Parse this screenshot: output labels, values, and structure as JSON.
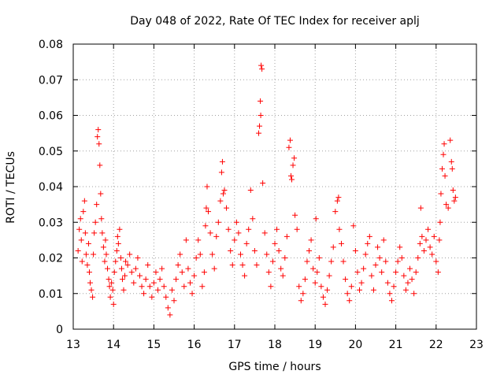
{
  "chart_data": {
    "type": "scatter",
    "title": "Day 048 of 2022, Rate Of TEC Index for receiver aplj",
    "xlabel": "GPS time / hours",
    "ylabel": "ROTI / TECUs",
    "xlim": [
      13,
      23
    ],
    "ylim": [
      0,
      0.08
    ],
    "x_ticks": [
      13,
      14,
      15,
      16,
      17,
      18,
      19,
      20,
      21,
      22,
      23
    ],
    "x_tick_labels": [
      "13",
      "14",
      "15",
      "16",
      "17",
      "18",
      "19",
      "20",
      "21",
      "22",
      "23"
    ],
    "y_ticks": [
      0,
      0.01,
      0.02,
      0.03,
      0.04,
      0.05,
      0.06,
      0.07,
      0.08
    ],
    "y_tick_labels": [
      "0",
      "0.01",
      "0.02",
      "0.03",
      "0.04",
      "0.05",
      "0.06",
      "0.07",
      "0.08"
    ],
    "grid": true,
    "marker": "+",
    "colors": {
      "points": "#ff0000",
      "grid": "#a0a0a0",
      "axes": "#000000"
    },
    "series": [
      {
        "name": "ROTI",
        "points": [
          [
            13.12,
            0.022
          ],
          [
            13.15,
            0.028
          ],
          [
            13.18,
            0.031
          ],
          [
            13.2,
            0.025
          ],
          [
            13.22,
            0.019
          ],
          [
            13.25,
            0.033
          ],
          [
            13.28,
            0.036
          ],
          [
            13.3,
            0.027
          ],
          [
            13.32,
            0.021
          ],
          [
            13.35,
            0.018
          ],
          [
            13.38,
            0.024
          ],
          [
            13.4,
            0.016
          ],
          [
            13.42,
            0.013
          ],
          [
            13.45,
            0.011
          ],
          [
            13.48,
            0.009
          ],
          [
            13.5,
            0.021
          ],
          [
            13.52,
            0.027
          ],
          [
            13.55,
            0.03
          ],
          [
            13.58,
            0.035
          ],
          [
            13.6,
            0.054
          ],
          [
            13.62,
            0.056
          ],
          [
            13.64,
            0.052
          ],
          [
            13.66,
            0.046
          ],
          [
            13.68,
            0.038
          ],
          [
            13.7,
            0.031
          ],
          [
            13.72,
            0.027
          ],
          [
            13.75,
            0.023
          ],
          [
            13.78,
            0.019
          ],
          [
            13.8,
            0.025
          ],
          [
            13.82,
            0.021
          ],
          [
            13.85,
            0.017
          ],
          [
            13.88,
            0.014
          ],
          [
            13.9,
            0.012
          ],
          [
            13.92,
            0.009
          ],
          [
            13.95,
            0.013
          ],
          [
            13.98,
            0.011
          ],
          [
            14.0,
            0.007
          ],
          [
            14.02,
            0.016
          ],
          [
            14.05,
            0.019
          ],
          [
            14.08,
            0.022
          ],
          [
            14.1,
            0.026
          ],
          [
            14.12,
            0.024
          ],
          [
            14.15,
            0.028
          ],
          [
            14.18,
            0.02
          ],
          [
            14.2,
            0.017
          ],
          [
            14.22,
            0.014
          ],
          [
            14.25,
            0.011
          ],
          [
            14.28,
            0.015
          ],
          [
            14.3,
            0.019
          ],
          [
            14.35,
            0.018
          ],
          [
            14.4,
            0.021
          ],
          [
            14.45,
            0.016
          ],
          [
            14.5,
            0.013
          ],
          [
            14.55,
            0.017
          ],
          [
            14.6,
            0.02
          ],
          [
            14.65,
            0.015
          ],
          [
            14.7,
            0.012
          ],
          [
            14.75,
            0.01
          ],
          [
            14.8,
            0.014
          ],
          [
            14.85,
            0.018
          ],
          [
            14.9,
            0.012
          ],
          [
            14.95,
            0.009
          ],
          [
            15.0,
            0.013
          ],
          [
            15.05,
            0.016
          ],
          [
            15.1,
            0.011
          ],
          [
            15.15,
            0.014
          ],
          [
            15.2,
            0.017
          ],
          [
            15.25,
            0.012
          ],
          [
            15.3,
            0.009
          ],
          [
            15.35,
            0.006
          ],
          [
            15.4,
            0.004
          ],
          [
            15.45,
            0.011
          ],
          [
            15.5,
            0.008
          ],
          [
            15.55,
            0.014
          ],
          [
            15.6,
            0.018
          ],
          [
            15.65,
            0.021
          ],
          [
            15.7,
            0.016
          ],
          [
            15.75,
            0.012
          ],
          [
            15.8,
            0.025
          ],
          [
            15.85,
            0.017
          ],
          [
            15.9,
            0.013
          ],
          [
            15.95,
            0.01
          ],
          [
            16.0,
            0.015
          ],
          [
            16.05,
            0.02
          ],
          [
            16.1,
            0.025
          ],
          [
            16.15,
            0.021
          ],
          [
            16.2,
            0.012
          ],
          [
            16.25,
            0.016
          ],
          [
            16.28,
            0.029
          ],
          [
            16.3,
            0.034
          ],
          [
            16.32,
            0.04
          ],
          [
            16.35,
            0.033
          ],
          [
            16.4,
            0.027
          ],
          [
            16.45,
            0.021
          ],
          [
            16.5,
            0.017
          ],
          [
            16.55,
            0.026
          ],
          [
            16.6,
            0.03
          ],
          [
            16.65,
            0.036
          ],
          [
            16.68,
            0.044
          ],
          [
            16.7,
            0.047
          ],
          [
            16.72,
            0.038
          ],
          [
            16.75,
            0.039
          ],
          [
            16.8,
            0.034
          ],
          [
            16.85,
            0.028
          ],
          [
            16.9,
            0.022
          ],
          [
            16.95,
            0.018
          ],
          [
            17.0,
            0.025
          ],
          [
            17.05,
            0.03
          ],
          [
            17.1,
            0.027
          ],
          [
            17.15,
            0.021
          ],
          [
            17.2,
            0.018
          ],
          [
            17.25,
            0.015
          ],
          [
            17.3,
            0.024
          ],
          [
            17.35,
            0.028
          ],
          [
            17.4,
            0.039
          ],
          [
            17.45,
            0.031
          ],
          [
            17.5,
            0.022
          ],
          [
            17.55,
            0.018
          ],
          [
            17.6,
            0.055
          ],
          [
            17.62,
            0.057
          ],
          [
            17.64,
            0.064
          ],
          [
            17.65,
            0.06
          ],
          [
            17.66,
            0.074
          ],
          [
            17.68,
            0.073
          ],
          [
            17.7,
            0.041
          ],
          [
            17.75,
            0.027
          ],
          [
            17.8,
            0.021
          ],
          [
            17.85,
            0.016
          ],
          [
            17.9,
            0.012
          ],
          [
            17.95,
            0.019
          ],
          [
            18.0,
            0.024
          ],
          [
            18.05,
            0.028
          ],
          [
            18.1,
            0.022
          ],
          [
            18.15,
            0.017
          ],
          [
            18.2,
            0.015
          ],
          [
            18.25,
            0.02
          ],
          [
            18.3,
            0.026
          ],
          [
            18.35,
            0.051
          ],
          [
            18.38,
            0.053
          ],
          [
            18.4,
            0.043
          ],
          [
            18.42,
            0.042
          ],
          [
            18.45,
            0.046
          ],
          [
            18.48,
            0.048
          ],
          [
            18.5,
            0.032
          ],
          [
            18.55,
            0.028
          ],
          [
            18.6,
            0.012
          ],
          [
            18.65,
            0.008
          ],
          [
            18.7,
            0.01
          ],
          [
            18.75,
            0.014
          ],
          [
            18.8,
            0.019
          ],
          [
            18.85,
            0.022
          ],
          [
            18.9,
            0.025
          ],
          [
            18.95,
            0.017
          ],
          [
            19.0,
            0.013
          ],
          [
            19.02,
            0.031
          ],
          [
            19.05,
            0.016
          ],
          [
            19.1,
            0.02
          ],
          [
            19.15,
            0.012
          ],
          [
            19.2,
            0.009
          ],
          [
            19.25,
            0.007
          ],
          [
            19.3,
            0.011
          ],
          [
            19.35,
            0.015
          ],
          [
            19.4,
            0.019
          ],
          [
            19.45,
            0.023
          ],
          [
            19.5,
            0.033
          ],
          [
            19.55,
            0.036
          ],
          [
            19.58,
            0.037
          ],
          [
            19.6,
            0.028
          ],
          [
            19.65,
            0.024
          ],
          [
            19.7,
            0.019
          ],
          [
            19.75,
            0.014
          ],
          [
            19.8,
            0.01
          ],
          [
            19.85,
            0.008
          ],
          [
            19.9,
            0.012
          ],
          [
            19.95,
            0.029
          ],
          [
            20.0,
            0.022
          ],
          [
            20.05,
            0.016
          ],
          [
            20.1,
            0.011
          ],
          [
            20.15,
            0.013
          ],
          [
            20.2,
            0.017
          ],
          [
            20.25,
            0.021
          ],
          [
            20.3,
            0.024
          ],
          [
            20.35,
            0.026
          ],
          [
            20.4,
            0.015
          ],
          [
            20.45,
            0.011
          ],
          [
            20.5,
            0.018
          ],
          [
            20.55,
            0.023
          ],
          [
            20.6,
            0.02
          ],
          [
            20.65,
            0.016
          ],
          [
            20.7,
            0.025
          ],
          [
            20.75,
            0.019
          ],
          [
            20.8,
            0.013
          ],
          [
            20.85,
            0.01
          ],
          [
            20.9,
            0.008
          ],
          [
            20.95,
            0.012
          ],
          [
            21.0,
            0.016
          ],
          [
            21.05,
            0.019
          ],
          [
            21.1,
            0.023
          ],
          [
            21.15,
            0.02
          ],
          [
            21.2,
            0.015
          ],
          [
            21.25,
            0.011
          ],
          [
            21.3,
            0.013
          ],
          [
            21.35,
            0.017
          ],
          [
            21.4,
            0.014
          ],
          [
            21.45,
            0.01
          ],
          [
            21.5,
            0.016
          ],
          [
            21.55,
            0.02
          ],
          [
            21.6,
            0.024
          ],
          [
            21.62,
            0.034
          ],
          [
            21.65,
            0.026
          ],
          [
            21.7,
            0.022
          ],
          [
            21.75,
            0.025
          ],
          [
            21.8,
            0.028
          ],
          [
            21.85,
            0.023
          ],
          [
            21.9,
            0.021
          ],
          [
            21.95,
            0.026
          ],
          [
            22.0,
            0.019
          ],
          [
            22.05,
            0.016
          ],
          [
            22.08,
            0.025
          ],
          [
            22.1,
            0.03
          ],
          [
            22.12,
            0.038
          ],
          [
            22.15,
            0.045
          ],
          [
            22.18,
            0.049
          ],
          [
            22.2,
            0.052
          ],
          [
            22.22,
            0.043
          ],
          [
            22.25,
            0.035
          ],
          [
            22.3,
            0.034
          ],
          [
            22.35,
            0.053
          ],
          [
            22.38,
            0.047
          ],
          [
            22.4,
            0.045
          ],
          [
            22.42,
            0.039
          ],
          [
            22.45,
            0.036
          ],
          [
            22.48,
            0.037
          ]
        ]
      }
    ]
  }
}
